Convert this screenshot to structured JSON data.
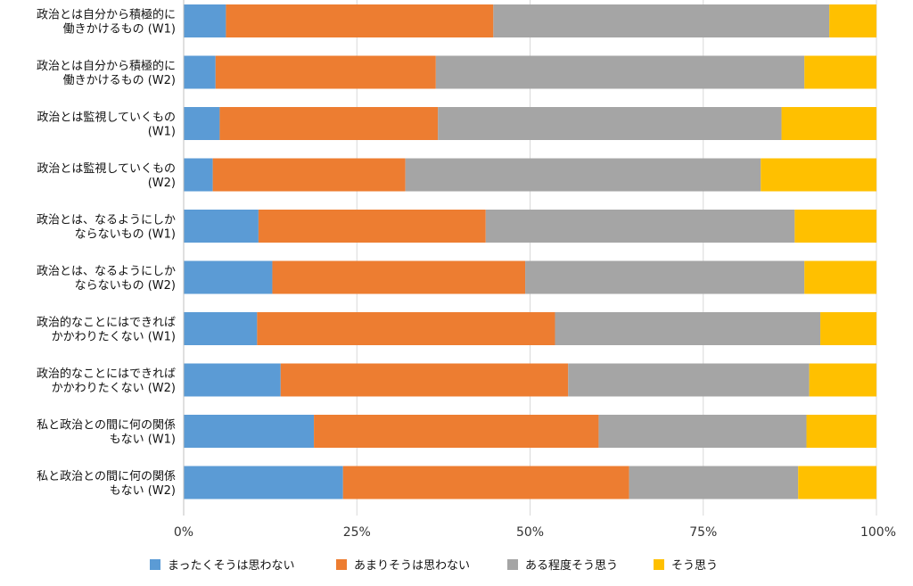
{
  "chart_data": {
    "type": "bar",
    "orientation": "horizontal",
    "stacked": "percent",
    "grid": true,
    "legend_position": "bottom",
    "xlim": [
      0,
      100
    ],
    "x_ticks": [
      "0%",
      "25%",
      "50%",
      "75%",
      "100%"
    ],
    "categories": [
      [
        "政治とは自分から積極的に",
        "働きかけるもの (W1)"
      ],
      [
        "政治とは自分から積極的に",
        "働きかけるもの (W2)"
      ],
      [
        "政治とは監視していくもの",
        "(W1)"
      ],
      [
        "政治とは監視していくもの",
        "(W2)"
      ],
      [
        "政治とは、なるようにしか",
        "ならないもの (W1)"
      ],
      [
        "政治とは、なるようにしか",
        "ならないもの (W2)"
      ],
      [
        "政治的なことにはできれば",
        "かかわりたくない (W1)"
      ],
      [
        "政治的なことにはできれば",
        "かかわりたくない (W2)"
      ],
      [
        "私と政治との間に何の関係",
        "もない (W1)"
      ],
      [
        "私と政治との間に何の関係",
        "もない (W2)"
      ]
    ],
    "series": [
      {
        "name": "まったくそうは思わない",
        "color": "#5B9BD5",
        "values": [
          6.1,
          4.6,
          5.2,
          4.2,
          10.8,
          12.8,
          10.6,
          14.0,
          18.8,
          23.0
        ]
      },
      {
        "name": "あまりそうは思わない",
        "color": "#ED7D31",
        "values": [
          38.6,
          31.8,
          31.5,
          27.8,
          32.8,
          36.5,
          43.0,
          41.5,
          41.1,
          41.3
        ]
      },
      {
        "name": "ある程度そう思う",
        "color": "#A5A5A5",
        "values": [
          48.5,
          53.2,
          49.6,
          51.3,
          44.6,
          40.3,
          38.3,
          34.8,
          30.0,
          24.4
        ]
      },
      {
        "name": "そう思う",
        "color": "#FFC000",
        "values": [
          6.8,
          10.4,
          13.7,
          16.7,
          11.8,
          10.4,
          8.1,
          9.7,
          10.1,
          11.3
        ]
      }
    ]
  }
}
